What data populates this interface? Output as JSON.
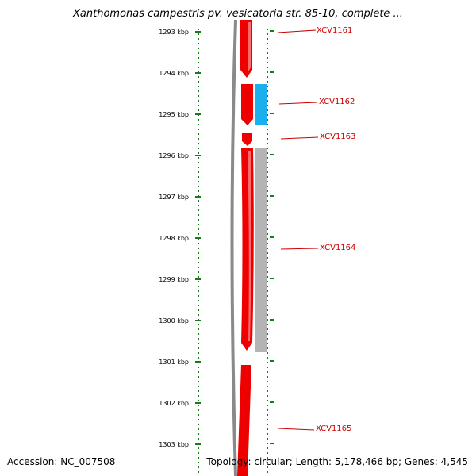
{
  "title": "Xanthomonas campestris pv. vesicatoria str. 85-10, complete ...",
  "footer": {
    "accession": "Accession: NC_007508",
    "summary": "Topology: circular; Length: 5,178,466 bp; Genes: 4,545"
  },
  "colors": {
    "backbone": "#8a8a8a",
    "gene": "#ee0000",
    "gene_highlight": "#ff6a6a",
    "blue_feature": "#1ab0ee",
    "gray_feature": "#b4b4b4",
    "tick": "#1a7a1a",
    "label": "#cc0000"
  },
  "scale": {
    "unit": "kbp",
    "ticks": [
      "1293 kbp",
      "1294 kbp",
      "1295 kbp",
      "1296 kbp",
      "1297 kbp",
      "1298 kbp",
      "1299 kbp",
      "1300 kbp",
      "1301 kbp",
      "1302 kbp",
      "1303 kbp"
    ]
  },
  "genes": [
    {
      "id": "XCV1161"
    },
    {
      "id": "XCV1162"
    },
    {
      "id": "XCV1163"
    },
    {
      "id": "XCV1164"
    },
    {
      "id": "XCV1165"
    }
  ]
}
